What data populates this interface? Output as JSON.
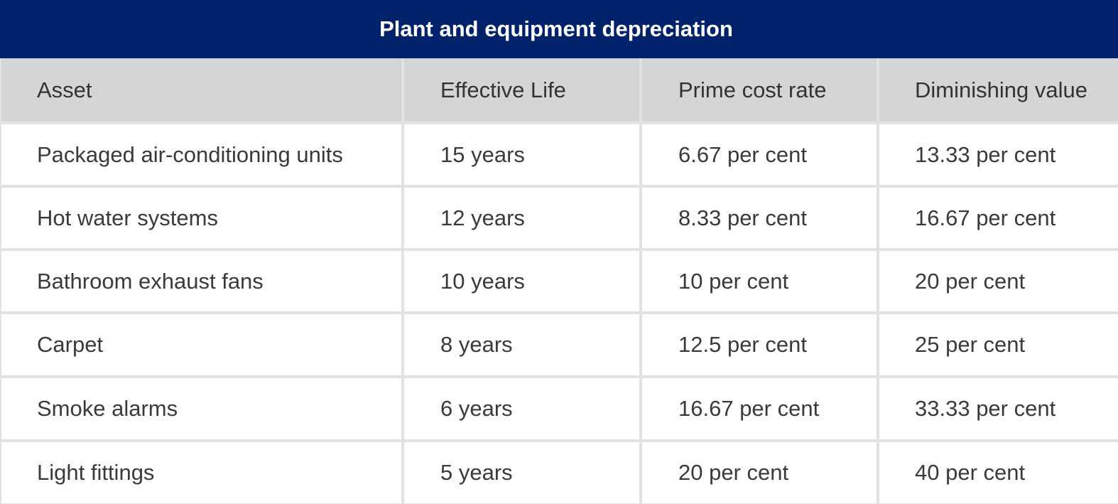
{
  "title": "Plant and equipment depreciation",
  "table": {
    "headers": [
      "Asset",
      "Effective Life",
      "Prime cost rate",
      "Diminishing value"
    ],
    "rows": [
      [
        "Packaged air-conditioning units",
        "15 years",
        "6.67 per cent",
        "13.33 per cent"
      ],
      [
        "Hot water systems",
        "12 years",
        "8.33 per cent",
        "16.67 per cent"
      ],
      [
        "Bathroom exhaust fans",
        "10 years",
        "10 per cent",
        "20 per cent"
      ],
      [
        "Carpet",
        "8 years",
        "12.5 per cent",
        "25 per cent"
      ],
      [
        "Smoke alarms",
        "6 years",
        "16.67 per cent",
        "33.33 per cent"
      ],
      [
        "Light fittings",
        "5 years",
        "20 per cent",
        "40 per cent"
      ]
    ]
  },
  "colors": {
    "title_bg": "#00226a",
    "header_bg": "#d4d5d7",
    "grid_line": "#e2e2e4"
  }
}
